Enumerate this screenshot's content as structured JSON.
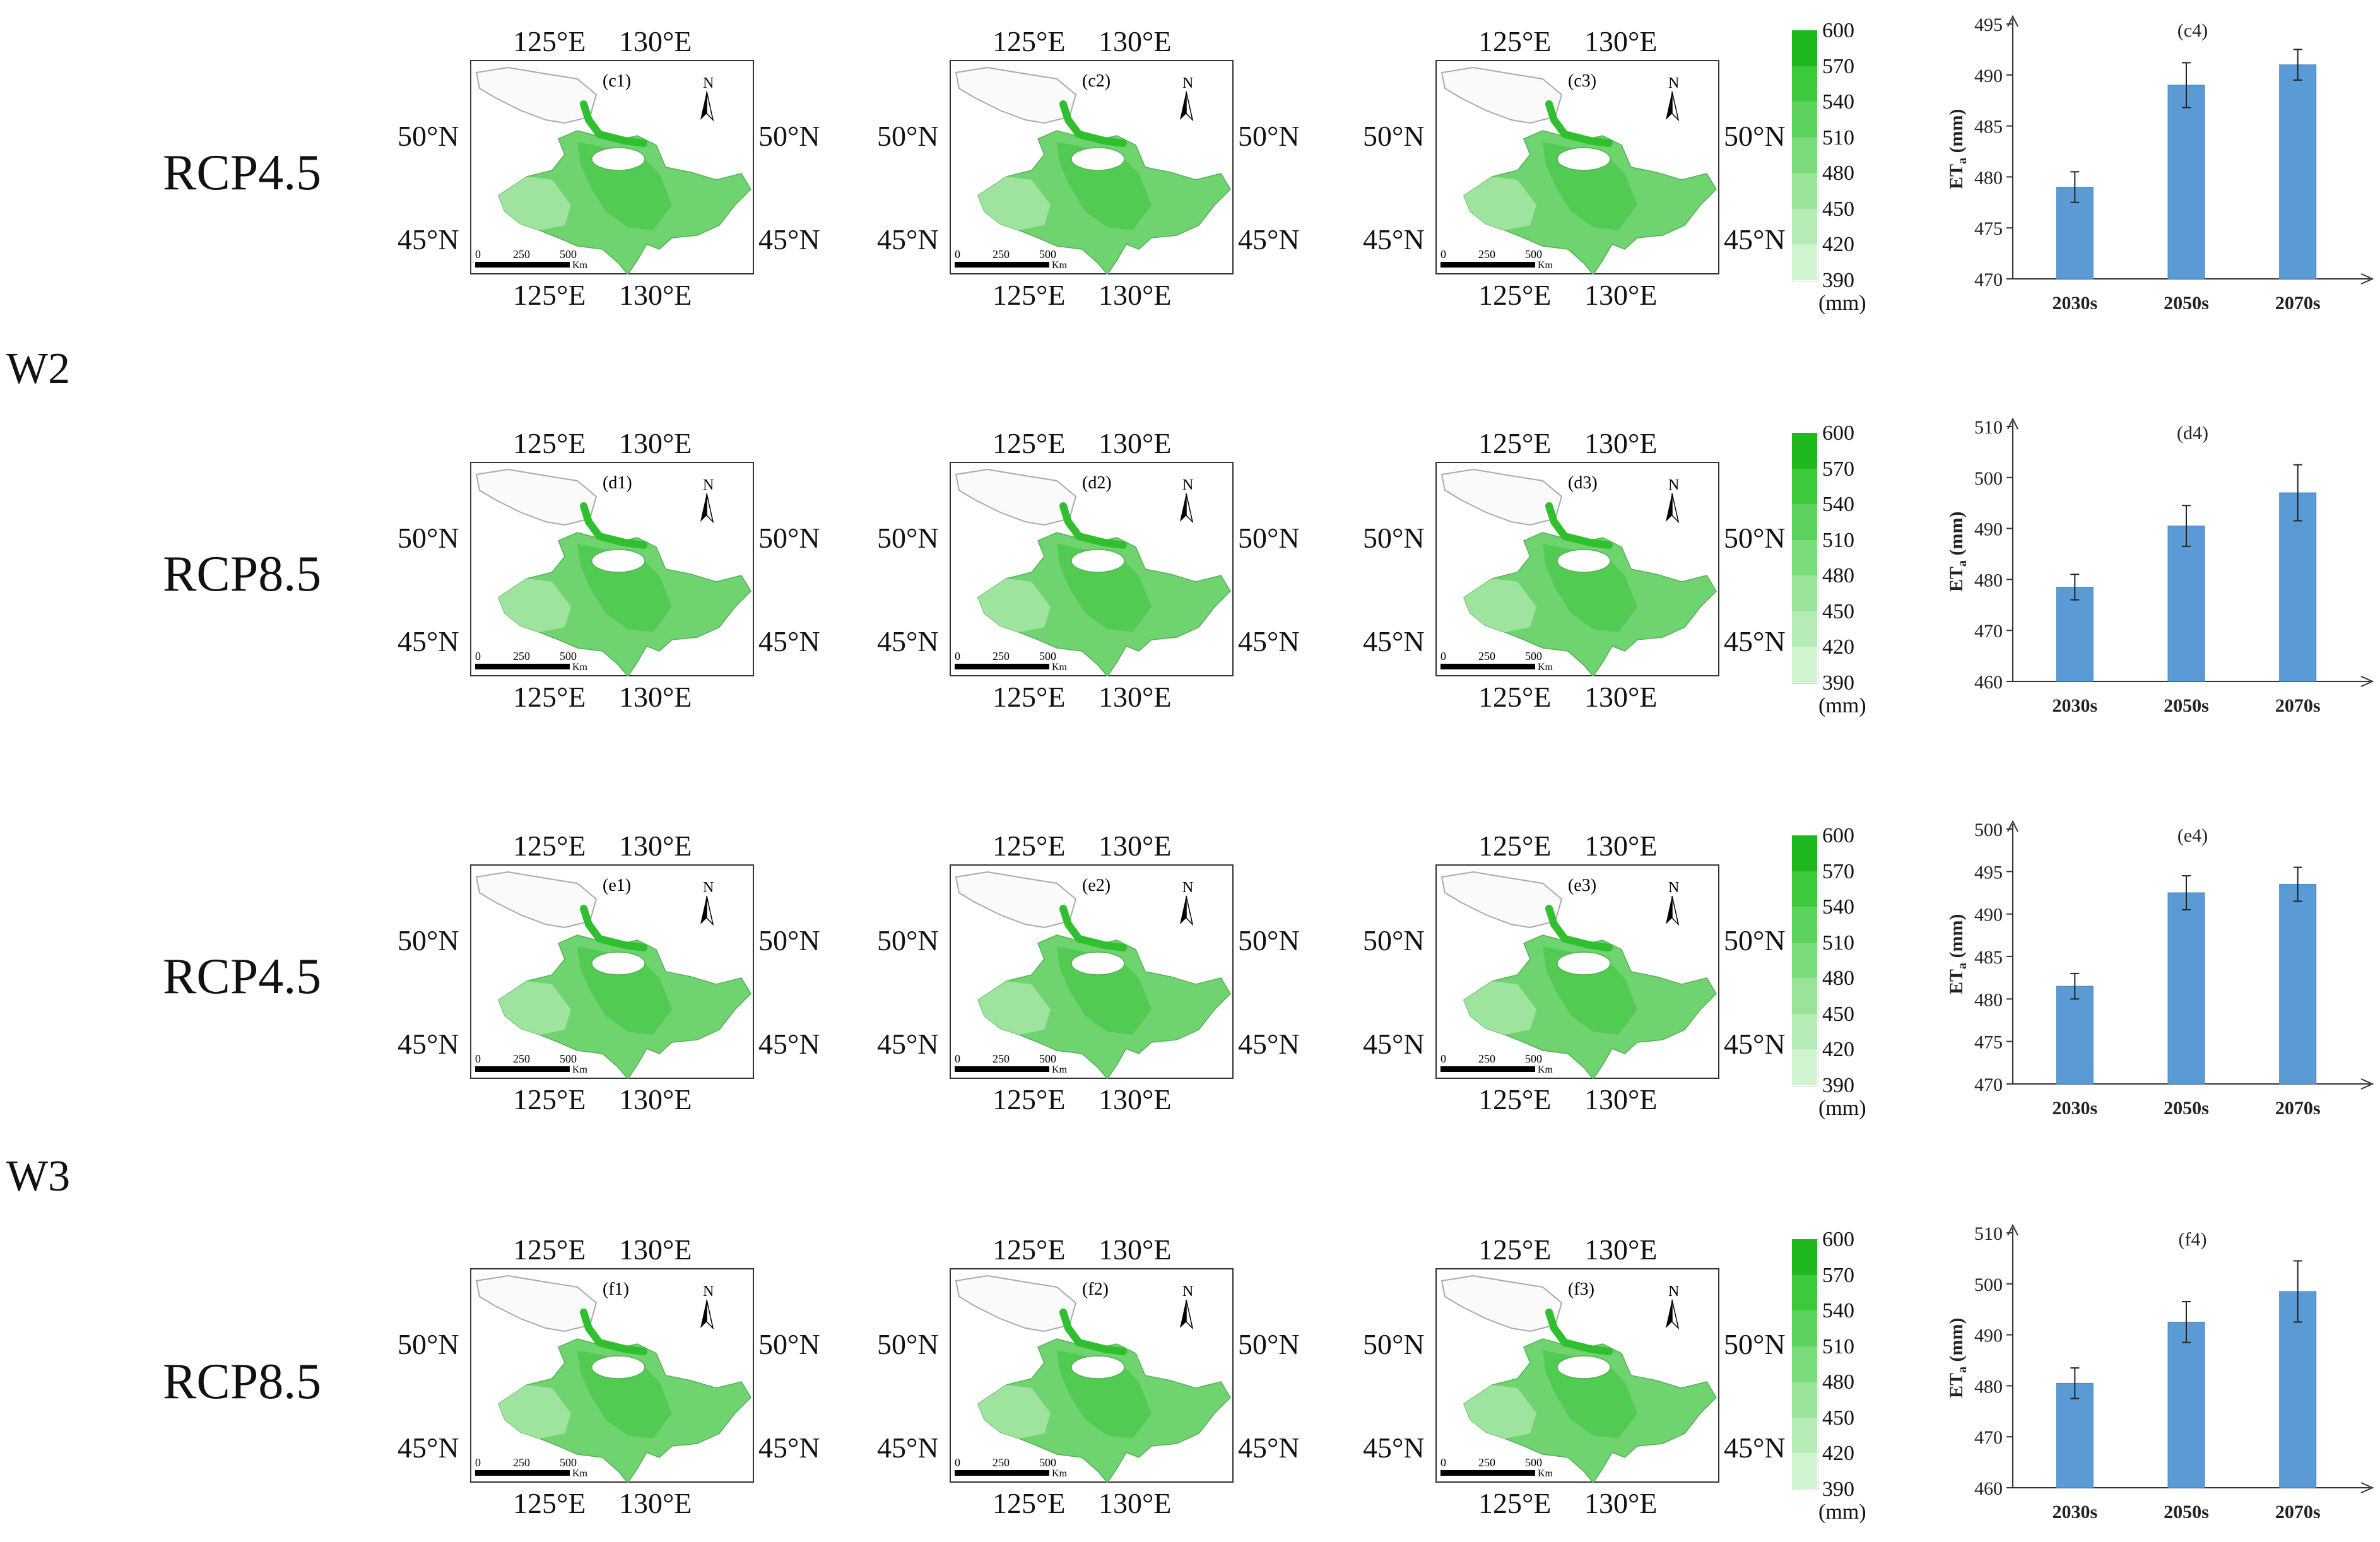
{
  "groups": [
    {
      "label": "W2"
    },
    {
      "label": "W3"
    }
  ],
  "rows": [
    {
      "scenario": "RCP4.5",
      "maps": [
        "(c1)",
        "(c2)",
        "(c3)"
      ]
    },
    {
      "scenario": "RCP8.5",
      "maps": [
        "(d1)",
        "(d2)",
        "(d3)"
      ]
    },
    {
      "scenario": "RCP4.5",
      "maps": [
        "(e1)",
        "(e2)",
        "(e3)"
      ]
    },
    {
      "scenario": "RCP8.5",
      "maps": [
        "(f1)",
        "(f2)",
        "(f3)"
      ]
    }
  ],
  "map_labels": {
    "lon_left": "125°E",
    "lon_right": "130°E",
    "lat_top": "50°N",
    "lat_bottom": "45°N",
    "north": "N",
    "scale_ticks": [
      "0",
      "250",
      "500"
    ],
    "scale_unit": "Km"
  },
  "legend": {
    "ticks": [
      "600",
      "570",
      "540",
      "510",
      "480",
      "450",
      "420",
      "390"
    ],
    "unit": "(mm)",
    "colors": [
      "#1fb81f",
      "#3cc93c",
      "#5cd35c",
      "#7bdc7b",
      "#99e499",
      "#b5ecb5",
      "#d0f3d0"
    ]
  },
  "colors": {
    "bar": "#5b9bd5",
    "bar_edge": "#4a86bf",
    "map_dark": "#4cc94c",
    "map_mid": "#6fd36f",
    "map_light": "#9ee49e",
    "river": "#2fbf2f"
  },
  "chart_data": [
    {
      "type": "bar",
      "title": "(c4)",
      "ylabel": "ETa (mm)",
      "categories": [
        "2030s",
        "2050s",
        "2070s"
      ],
      "values": [
        479,
        489,
        491
      ],
      "error": [
        1.5,
        2.2,
        1.5
      ],
      "ylim": [
        470,
        495
      ],
      "yticks": [
        470,
        475,
        480,
        485,
        490,
        495
      ],
      "grid": false
    },
    {
      "type": "bar",
      "title": "(d4)",
      "ylabel": "ETa (mm)",
      "categories": [
        "2030s",
        "2050s",
        "2070s"
      ],
      "values": [
        478.5,
        490.5,
        497
      ],
      "error": [
        2.5,
        4,
        5.5
      ],
      "ylim": [
        460,
        510
      ],
      "yticks": [
        460,
        470,
        480,
        490,
        500,
        510
      ],
      "grid": false
    },
    {
      "type": "bar",
      "title": "(e4)",
      "ylabel": "ETa (mm)",
      "categories": [
        "2030s",
        "2050s",
        "2070s"
      ],
      "values": [
        481.5,
        492.5,
        493.5
      ],
      "error": [
        1.5,
        2,
        2
      ],
      "ylim": [
        470,
        500
      ],
      "yticks": [
        470,
        475,
        480,
        485,
        490,
        495,
        500
      ],
      "grid": false
    },
    {
      "type": "bar",
      "title": "(f4)",
      "ylabel": "ETa (mm)",
      "categories": [
        "2030s",
        "2050s",
        "2070s"
      ],
      "values": [
        480.5,
        492.5,
        498.5
      ],
      "error": [
        3,
        4,
        6
      ],
      "ylim": [
        460,
        510
      ],
      "yticks": [
        460,
        470,
        480,
        490,
        500,
        510
      ],
      "grid": false
    }
  ]
}
